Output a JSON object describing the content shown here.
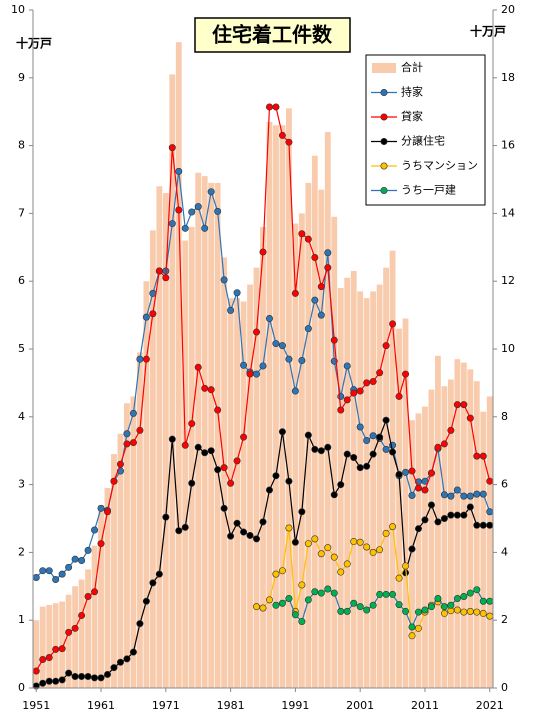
{
  "chart_data": {
    "type": "bar-line",
    "title": "住宅着工件数",
    "y_label": "十万戸",
    "y2_label": "十万戸",
    "categories": [
      "1951",
      null,
      null,
      null,
      null,
      null,
      null,
      null,
      null,
      null,
      "1961",
      null,
      null,
      null,
      null,
      null,
      null,
      null,
      null,
      null,
      "1971",
      null,
      null,
      null,
      null,
      null,
      null,
      null,
      null,
      null,
      "1981",
      null,
      null,
      null,
      null,
      null,
      null,
      null,
      null,
      null,
      "1991",
      null,
      null,
      null,
      null,
      null,
      null,
      null,
      null,
      null,
      "2001",
      null,
      null,
      null,
      null,
      null,
      null,
      null,
      null,
      null,
      "2011",
      null,
      null,
      null,
      null,
      null,
      null,
      null,
      null,
      null,
      "2021"
    ],
    "ylim": [
      0,
      10
    ],
    "yticks": [
      0,
      1,
      2,
      3,
      4,
      5,
      6,
      7,
      8,
      9,
      10
    ],
    "y2lim": [
      0,
      20
    ],
    "y2ticks": [
      0,
      2,
      4,
      6,
      8,
      10,
      12,
      14,
      16,
      18,
      20
    ],
    "legend": "upper right",
    "series": [
      {
        "name": "合計",
        "type": "bar",
        "axis": "y2",
        "color": "#f8cbad",
        "values": [
          2.0,
          2.4,
          2.45,
          2.5,
          2.55,
          2.75,
          3.0,
          3.2,
          3.5,
          4.2,
          5.4,
          5.9,
          6.9,
          7.5,
          8.4,
          8.6,
          9.9,
          12.0,
          13.5,
          14.8,
          14.6,
          18.1,
          19.05,
          13.2,
          13.6,
          15.2,
          15.1,
          14.9,
          14.9,
          12.7,
          11.5,
          11.5,
          11.4,
          11.9,
          12.4,
          13.6,
          16.7,
          16.6,
          16.6,
          17.1,
          13.7,
          14.0,
          14.9,
          15.7,
          14.7,
          16.4,
          13.9,
          11.8,
          12.1,
          12.3,
          11.7,
          11.5,
          11.7,
          11.9,
          12.4,
          12.9,
          10.6,
          10.9,
          7.9,
          8.1,
          8.3,
          8.8,
          9.8,
          8.9,
          9.1,
          9.7,
          9.6,
          9.4,
          9.05,
          8.15,
          8.6
        ]
      },
      {
        "name": "持家",
        "type": "line",
        "color": "#2e75b6",
        "marker_color": "#2e75b6",
        "values": [
          1.63,
          1.73,
          1.73,
          1.6,
          1.68,
          1.78,
          1.9,
          1.88,
          2.03,
          2.33,
          2.65,
          2.62,
          3.05,
          3.2,
          3.75,
          4.05,
          4.85,
          5.47,
          5.82,
          6.15,
          6.15,
          6.85,
          7.62,
          6.78,
          7.02,
          7.1,
          6.78,
          7.32,
          7.03,
          6.02,
          5.57,
          5.83,
          4.76,
          4.66,
          4.63,
          4.75,
          5.45,
          5.08,
          5.05,
          4.85,
          4.38,
          4.83,
          5.3,
          5.72,
          5.5,
          6.42,
          4.82,
          4.3,
          4.75,
          4.4,
          3.85,
          3.65,
          3.72,
          3.68,
          3.52,
          3.58,
          3.13,
          3.18,
          2.84,
          3.04,
          3.05,
          3.17,
          3.53,
          2.85,
          2.83,
          2.92,
          2.83,
          2.83,
          2.86,
          2.86,
          2.6
        ]
      },
      {
        "name": "貸家",
        "type": "line",
        "color": "#ff0000",
        "marker_color": "#ff0000",
        "values": [
          0.25,
          0.42,
          0.45,
          0.57,
          0.58,
          0.82,
          0.88,
          1.07,
          1.35,
          1.42,
          2.13,
          2.6,
          3.05,
          3.3,
          3.6,
          3.62,
          3.8,
          4.85,
          5.52,
          6.15,
          6.05,
          7.97,
          7.05,
          3.58,
          3.9,
          4.73,
          4.42,
          4.4,
          4.1,
          3.25,
          3.02,
          3.35,
          3.7,
          4.63,
          5.25,
          6.43,
          8.57,
          8.57,
          8.15,
          8.05,
          5.82,
          6.7,
          6.62,
          6.35,
          5.92,
          6.2,
          5.13,
          4.1,
          4.25,
          4.35,
          4.38,
          4.5,
          4.52,
          4.65,
          5.05,
          5.37,
          4.3,
          4.63,
          3.2,
          2.95,
          2.92,
          3.17,
          3.55,
          3.6,
          3.8,
          4.18,
          4.18,
          3.98,
          3.42,
          3.42,
          3.05
        ]
      },
      {
        "name": "分譲住宅",
        "type": "line",
        "color": "#000000",
        "marker_color": "#000000",
        "values": [
          0.03,
          0.07,
          0.1,
          0.1,
          0.12,
          0.22,
          0.17,
          0.17,
          0.17,
          0.15,
          0.15,
          0.2,
          0.3,
          0.38,
          0.43,
          0.53,
          0.95,
          1.28,
          1.55,
          1.68,
          2.52,
          3.67,
          2.32,
          2.37,
          3.02,
          3.55,
          3.47,
          3.5,
          3.22,
          2.65,
          2.24,
          2.43,
          2.3,
          2.25,
          2.2,
          2.45,
          2.92,
          3.13,
          3.78,
          3.05,
          2.15,
          2.6,
          3.73,
          3.52,
          3.5,
          3.55,
          2.85,
          3.0,
          3.45,
          3.4,
          3.25,
          3.27,
          3.45,
          3.7,
          3.95,
          3.48,
          3.15,
          1.7,
          2.05,
          2.35,
          2.48,
          2.7,
          2.45,
          2.5,
          2.55,
          2.55,
          2.55,
          2.67,
          2.4,
          2.4,
          2.4
        ]
      },
      {
        "name": "うちマンション",
        "type": "line",
        "color": "#ffc000",
        "marker_color": "#ffc000",
        "values": [
          null,
          null,
          null,
          null,
          null,
          null,
          null,
          null,
          null,
          null,
          null,
          null,
          null,
          null,
          null,
          null,
          null,
          null,
          null,
          null,
          null,
          null,
          null,
          null,
          null,
          null,
          null,
          null,
          null,
          null,
          null,
          null,
          null,
          null,
          1.2,
          1.18,
          1.3,
          1.68,
          1.73,
          2.36,
          1.13,
          1.52,
          2.13,
          2.2,
          1.98,
          2.07,
          1.93,
          1.71,
          1.83,
          2.16,
          2.15,
          2.08,
          2.0,
          2.04,
          2.28,
          2.38,
          1.62,
          1.8,
          0.77,
          0.88,
          1.12,
          1.22,
          1.27,
          1.1,
          1.14,
          1.15,
          1.12,
          1.13,
          1.12,
          1.1,
          1.06
        ]
      },
      {
        "name": "うち一戸建",
        "type": "line",
        "color": "#2e75b6",
        "marker_color": "#00b050",
        "values": [
          null,
          null,
          null,
          null,
          null,
          null,
          null,
          null,
          null,
          null,
          null,
          null,
          null,
          null,
          null,
          null,
          null,
          null,
          null,
          null,
          null,
          null,
          null,
          null,
          null,
          null,
          null,
          null,
          null,
          null,
          null,
          null,
          null,
          null,
          null,
          null,
          null,
          1.22,
          1.25,
          1.32,
          1.08,
          0.98,
          1.3,
          1.42,
          1.4,
          1.46,
          1.4,
          1.13,
          1.13,
          1.25,
          1.2,
          1.15,
          1.22,
          1.38,
          1.38,
          1.38,
          1.23,
          1.13,
          0.9,
          1.12,
          1.15,
          1.2,
          1.32,
          1.2,
          1.22,
          1.32,
          1.35,
          1.4,
          1.45,
          1.28,
          1.28
        ]
      }
    ]
  }
}
